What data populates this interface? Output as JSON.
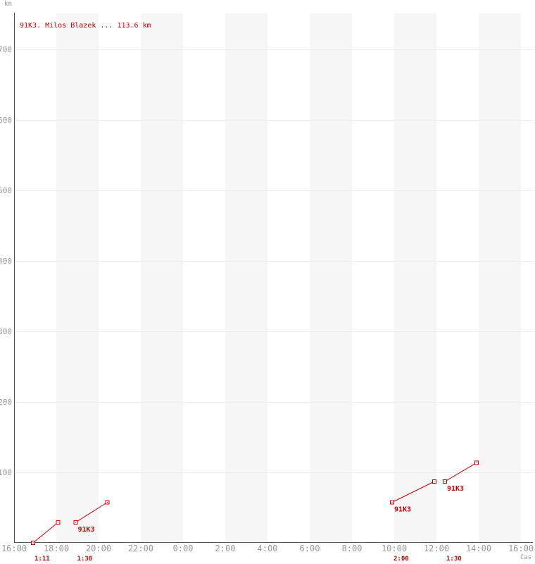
{
  "page": {
    "background": "#ffffff"
  },
  "chart_data": {
    "type": "line",
    "title": "91K3. Milos Blazek ... 113.6 km",
    "ylabel": "km",
    "xlabel": "čas",
    "grid": "horizontal",
    "legend": "none",
    "total_distance_km": 113.6,
    "colors": {
      "series": "#cc0000",
      "axis": "#555555",
      "grid": "#ececec",
      "band": "#f6f6f6",
      "tick_label": "#999999"
    },
    "x_axis": {
      "start": "16:00",
      "end": "16:00",
      "span_hours": 24,
      "tick_step_hours": 2,
      "tick_labels": [
        "16:00",
        "18:00",
        "20:00",
        "22:00",
        "0:00",
        "2:00",
        "4:00",
        "6:00",
        "8:00",
        "10:00",
        "12:00",
        "14:00",
        "16:00"
      ]
    },
    "y_axis": {
      "min": 0,
      "max": 750,
      "tick_step": 100,
      "ticks": [
        100,
        200,
        300,
        400,
        500,
        600,
        700
      ],
      "tick_labels": [
        "100",
        "200",
        "300",
        "400",
        "500",
        "600",
        "700"
      ]
    },
    "series": [
      {
        "name": "91K3",
        "color": "#cc0000",
        "segments": [
          {
            "points": [
              [
                "16:54",
                0
              ],
              [
                "18:05",
                29
              ]
            ],
            "duration_label": "1:11",
            "bib_label": ""
          },
          {
            "points": [
              [
                "18:55",
                29
              ],
              [
                "20:25",
                57.5
              ]
            ],
            "duration_label": "1:30",
            "bib_label": "91K3"
          },
          {
            "points": [
              [
                "9:54",
                57.5
              ],
              [
                "11:54",
                87
              ]
            ],
            "duration_label": "2:00",
            "bib_label": "91K3"
          },
          {
            "points": [
              [
                "12:24",
                87
              ],
              [
                "13:54",
                113.6
              ]
            ],
            "duration_label": "1:30",
            "bib_label": "91K3"
          }
        ]
      }
    ]
  }
}
